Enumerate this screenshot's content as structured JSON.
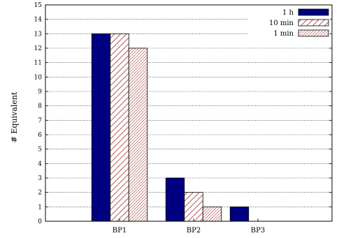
{
  "chart_data": {
    "type": "bar",
    "categories": [
      "BP1",
      "BP2",
      "BP3"
    ],
    "series": [
      {
        "name": "1 h",
        "values": [
          13,
          3,
          1
        ],
        "pattern": "solid"
      },
      {
        "name": "10 min",
        "values": [
          13,
          2,
          0
        ],
        "pattern": "hatch-wide"
      },
      {
        "name": "1 min",
        "values": [
          12,
          1,
          0
        ],
        "pattern": "hatch-dense"
      }
    ],
    "xlabel": "",
    "ylabel": "# Equivalent",
    "ylim": [
      0,
      15
    ],
    "yticks": [
      0,
      1,
      2,
      3,
      4,
      5,
      6,
      7,
      8,
      9,
      10,
      11,
      12,
      13,
      14,
      15
    ],
    "grid": true,
    "legend_position": "top-right",
    "colors": {
      "solid_fill": "#000080",
      "hatch_stroke": "#a03030",
      "bar_edge": "#000000"
    }
  }
}
